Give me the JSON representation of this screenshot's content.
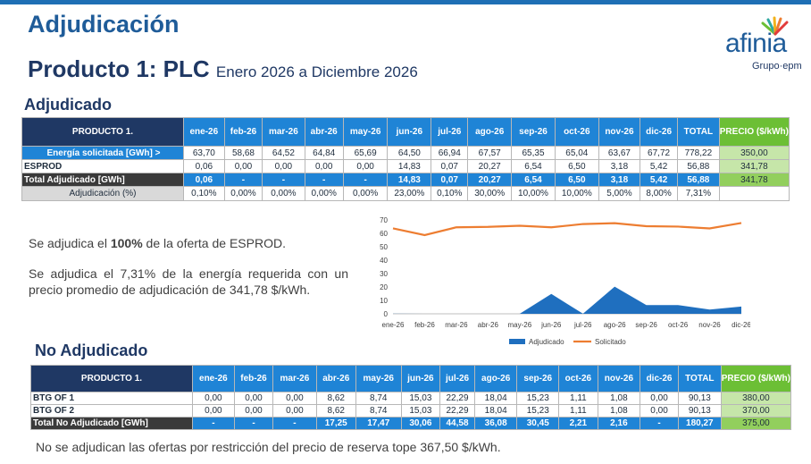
{
  "title": "Adjudicación",
  "product_title": "Producto 1: PLC",
  "period": "Enero 2026 a Diciembre 2026",
  "logo": {
    "word": "afinia",
    "group": "Grupo·epm"
  },
  "section_adjudicado": "Adjudicado",
  "section_no_adjudicado": "No Adjudicado",
  "table1": {
    "header": [
      "PRODUCTO 1.",
      "ene-26",
      "feb-26",
      "mar-26",
      "abr-26",
      "may-26",
      "jun-26",
      "jul-26",
      "ago-26",
      "sep-26",
      "oct-26",
      "nov-26",
      "dic-26",
      "TOTAL",
      "PRECIO ($/kWh)"
    ],
    "rows": [
      {
        "label": "Energía solicitada [GWh] >",
        "values": [
          "63,70",
          "58,68",
          "64,52",
          "64,84",
          "65,69",
          "64,50",
          "66,94",
          "67,57",
          "65,35",
          "65,04",
          "63,67",
          "67,72",
          "778,22"
        ],
        "price": "350,00"
      },
      {
        "label": "ESPROD",
        "values": [
          "0,06",
          "0,00",
          "0,00",
          "0,00",
          "0,00",
          "14,83",
          "0,07",
          "20,27",
          "6,54",
          "6,50",
          "3,18",
          "5,42",
          "56,88"
        ],
        "price": "341,78"
      },
      {
        "label": "Total Adjudicado [GWh]",
        "values": [
          "0,06",
          "-",
          "-",
          "-",
          "-",
          "14,83",
          "0,07",
          "20,27",
          "6,54",
          "6,50",
          "3,18",
          "5,42",
          "56,88"
        ],
        "price": "341,78"
      }
    ],
    "adj_label": "Adjudicación (%)",
    "adj_values": [
      "0,10%",
      "0,00%",
      "0,00%",
      "0,00%",
      "0,00%",
      "23,00%",
      "0,10%",
      "30,00%",
      "10,00%",
      "10,00%",
      "5,00%",
      "8,00%",
      "7,31%"
    ]
  },
  "text1_pre": "Se adjudica el ",
  "text1_bold": "100%",
  "text1_post": " de la oferta de ESPROD.",
  "text2": "Se adjudica el 7,31% de la energía requerida con un precio promedio de adjudicación de 341,78 $/kWh.",
  "chart_data": {
    "type": "area",
    "categories": [
      "ene-26",
      "feb-26",
      "mar-26",
      "abr-26",
      "may-26",
      "jun-26",
      "jul-26",
      "ago-26",
      "sep-26",
      "oct-26",
      "nov-26",
      "dic-26"
    ],
    "series": [
      {
        "name": "Adjudicado",
        "type": "area",
        "color": "#1f6fbf",
        "values": [
          0.06,
          0,
          0,
          0,
          0,
          14.83,
          0.07,
          20.27,
          6.54,
          6.5,
          3.18,
          5.42
        ]
      },
      {
        "name": "Solicitado",
        "type": "line",
        "color": "#ed7d31",
        "values": [
          63.7,
          58.68,
          64.52,
          64.84,
          65.69,
          64.5,
          66.94,
          67.57,
          65.35,
          65.04,
          63.67,
          67.72
        ]
      }
    ],
    "yticks": [
      "0",
      "10",
      "20",
      "30",
      "40",
      "50",
      "60",
      "70"
    ],
    "ylim": [
      0,
      70
    ],
    "legend": "bottom"
  },
  "table2": {
    "header": [
      "PRODUCTO 1.",
      "ene-26",
      "feb-26",
      "mar-26",
      "abr-26",
      "may-26",
      "jun-26",
      "jul-26",
      "ago-26",
      "sep-26",
      "oct-26",
      "nov-26",
      "dic-26",
      "TOTAL",
      "PRECIO ($/kWh)"
    ],
    "rows": [
      {
        "label": "BTG OF 1",
        "values": [
          "0,00",
          "0,00",
          "0,00",
          "8,62",
          "8,74",
          "15,03",
          "22,29",
          "18,04",
          "15,23",
          "1,11",
          "1,08",
          "0,00",
          "90,13"
        ],
        "price": "380,00"
      },
      {
        "label": "BTG OF 2",
        "values": [
          "0,00",
          "0,00",
          "0,00",
          "8,62",
          "8,74",
          "15,03",
          "22,29",
          "18,04",
          "15,23",
          "1,11",
          "1,08",
          "0,00",
          "90,13"
        ],
        "price": "370,00"
      },
      {
        "label": "Total No Adjudicado [GWh]",
        "values": [
          "-",
          "-",
          "-",
          "17,25",
          "17,47",
          "30,06",
          "44,58",
          "36,08",
          "30,45",
          "2,21",
          "2,16",
          "-",
          "180,27"
        ],
        "price": "375,00"
      }
    ]
  },
  "footer": "No se adjudican las ofertas por restricción del precio de reserva tope 367,50 $/kWh."
}
